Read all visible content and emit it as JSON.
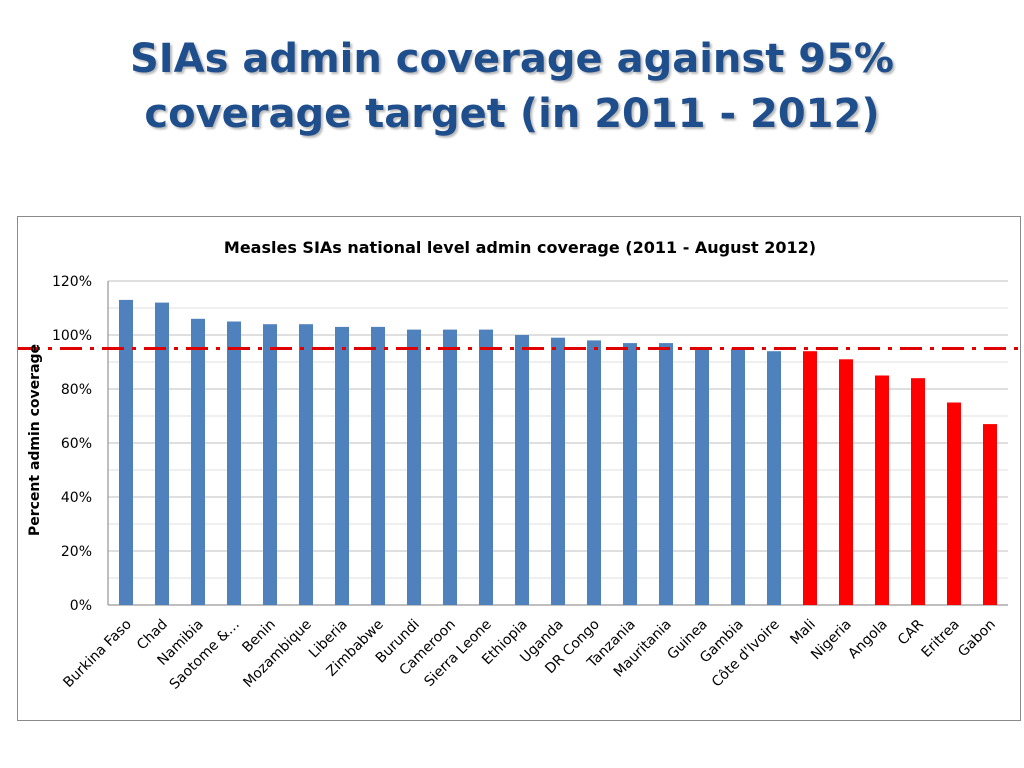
{
  "slide": {
    "title_line1": "SIAs admin coverage against 95%",
    "title_line2": "coverage target (in 2011 - 2012)"
  },
  "colors": {
    "title": "#1f4e8c",
    "bar_blue": "#4f81bd",
    "bar_red": "#ff0000",
    "target_line": "#e00000",
    "grid": "#bfbfbf"
  },
  "chart_data": {
    "type": "bar",
    "title": "Measles SIAs national level admin coverage (2011 - August 2012)",
    "xlabel": "",
    "ylabel": "Percent admin coverage",
    "ylim": [
      0,
      120
    ],
    "yticks": [
      0,
      20,
      40,
      60,
      80,
      100,
      120
    ],
    "ytick_labels": [
      "0%",
      "20%",
      "40%",
      "60%",
      "80%",
      "100%",
      "120%"
    ],
    "grid": true,
    "target": 95,
    "categories": [
      "Burkina Faso",
      "Chad",
      "Namibia",
      "Saotome &…",
      "Benin",
      "Mozambique",
      "Liberia",
      "Zimbabwe",
      "Burundi",
      "Cameroon",
      "Sierra Leone",
      "Ethiopia",
      "Uganda",
      "DR Congo",
      "Tanzania",
      "Mauritania",
      "Guinea",
      "Gambia",
      "Côte d'Ivoire",
      "Mali",
      "Nigeria",
      "Angola",
      "CAR",
      "Eritrea",
      "Gabon"
    ],
    "values": [
      113,
      112,
      106,
      105,
      104,
      104,
      103,
      103,
      102,
      102,
      102,
      100,
      99,
      98,
      97,
      97,
      95,
      95,
      94,
      94,
      91,
      85,
      84,
      75,
      67
    ],
    "bar_colors": [
      "blue",
      "blue",
      "blue",
      "blue",
      "blue",
      "blue",
      "blue",
      "blue",
      "blue",
      "blue",
      "blue",
      "blue",
      "blue",
      "blue",
      "blue",
      "blue",
      "blue",
      "blue",
      "blue",
      "red",
      "red",
      "red",
      "red",
      "red",
      "red"
    ]
  }
}
